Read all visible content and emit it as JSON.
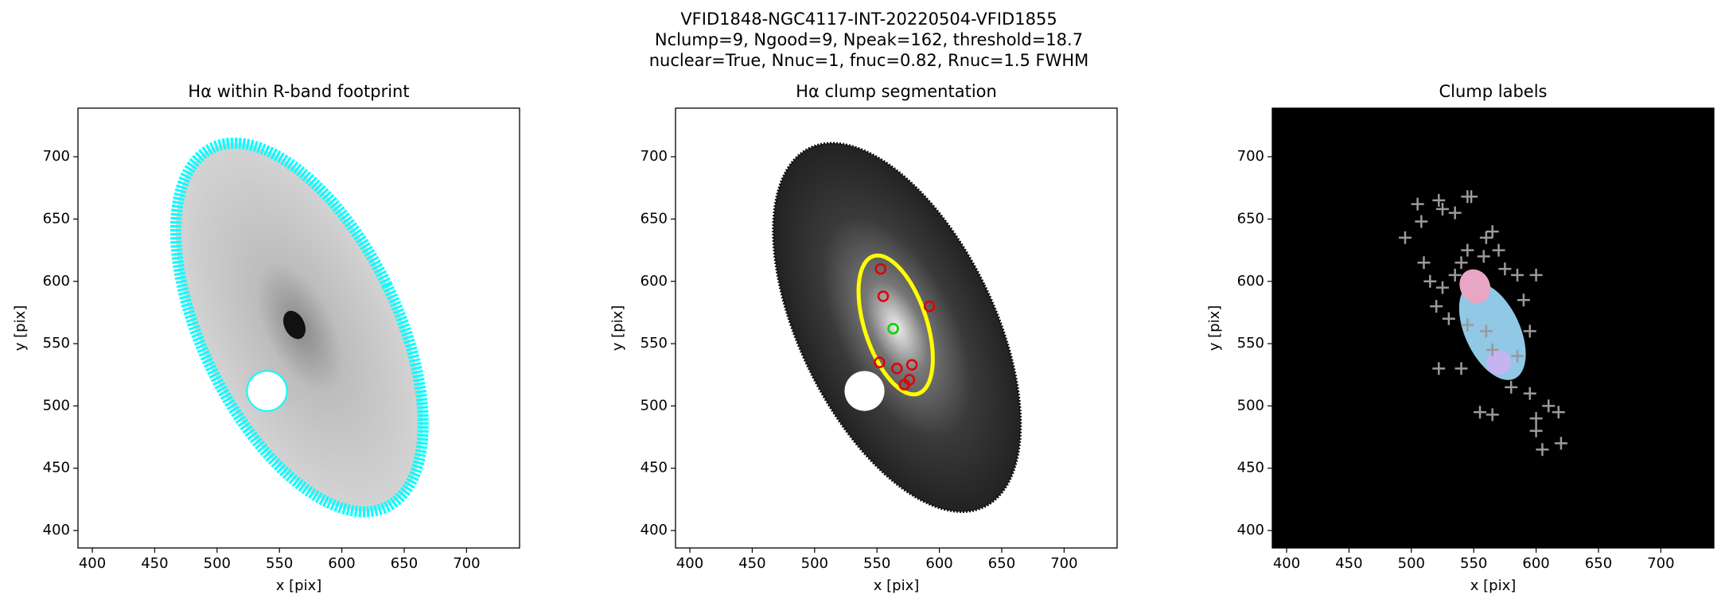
{
  "title": [
    "VFID1848-NGC4117-INT-20220504-VFID1855",
    "Nclump=9, Ngood=9, Npeak=162, threshold=18.7",
    "nuclear=True, Nnuc=1, fnuc=0.82, Rnuc=1.5 FWHM"
  ],
  "chart_data": [
    {
      "type": "footprint",
      "title": "Hα within R-band footprint",
      "x_label": "x [pix]",
      "y_label": "y [pix]",
      "xlim": [
        388.5,
        742.5
      ],
      "ylim": [
        386,
        739
      ],
      "xticks": [
        400,
        450,
        500,
        550,
        600,
        650,
        700
      ],
      "yticks": [
        400,
        450,
        500,
        550,
        600,
        650,
        700
      ]
    },
    {
      "type": "segmentation",
      "title": "Hα clump segmentation",
      "x_label": "x [pix]",
      "y_label": "y [pix]",
      "xlim": [
        388.5,
        742.5
      ],
      "ylim": [
        386,
        739
      ],
      "xticks": [
        400,
        450,
        500,
        550,
        600,
        650,
        700
      ],
      "yticks": [
        400,
        450,
        500,
        550,
        600,
        650,
        700
      ],
      "series": [
        {
          "color": "#e00000",
          "x": [
            553,
            555,
            592,
            552,
            566,
            576,
            572,
            578,
            563
          ],
          "y": [
            610,
            588,
            580,
            535,
            530,
            521,
            517,
            533,
            562
          ]
        },
        {
          "color": "#00dd00",
          "x": [
            563
          ],
          "y": [
            562
          ]
        }
      ]
    },
    {
      "type": "labels",
      "title": "Clump labels",
      "x_label": "x [pix]",
      "y_label": "y [pix]",
      "xlim": [
        388.5,
        742.5
      ],
      "ylim": [
        386,
        739
      ],
      "xticks": [
        400,
        450,
        500,
        550,
        600,
        650,
        700
      ],
      "yticks": [
        400,
        450,
        500,
        550,
        600,
        650,
        700
      ],
      "series": [
        {
          "color": "#9a9a9a",
          "x": [
            495,
            505,
            508,
            522,
            525,
            535,
            545,
            548,
            510,
            515,
            525,
            520,
            540,
            535,
            545,
            560,
            565,
            570,
            558,
            575,
            585,
            600,
            590,
            595,
            522,
            540,
            555,
            565,
            580,
            595,
            600,
            605,
            610,
            618,
            620,
            600,
            585,
            560,
            565,
            545,
            530
          ],
          "y": [
            635,
            662,
            648,
            665,
            658,
            655,
            668,
            668,
            615,
            600,
            595,
            580,
            615,
            605,
            625,
            635,
            640,
            625,
            620,
            610,
            605,
            605,
            585,
            560,
            530,
            530,
            495,
            493,
            515,
            510,
            490,
            465,
            500,
            495,
            470,
            480,
            540,
            560,
            545,
            565,
            570
          ]
        }
      ]
    }
  ]
}
